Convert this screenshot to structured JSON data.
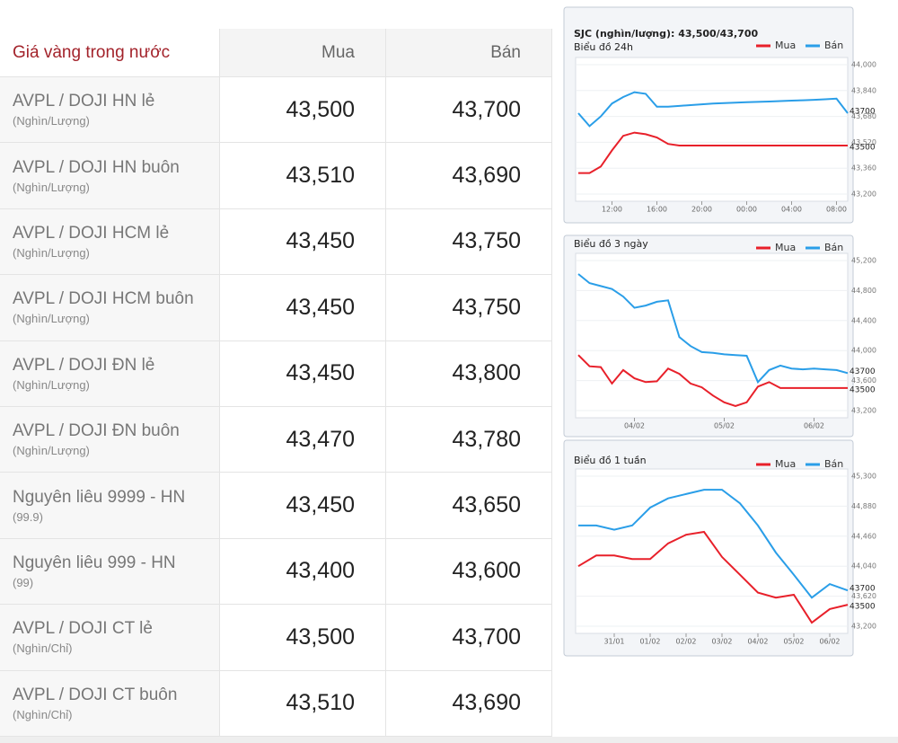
{
  "table": {
    "header": [
      "Giá vàng trong nước",
      "Mua",
      "Bán"
    ],
    "rows": [
      [
        "AVPL / DOJI HN lẻ",
        "(Nghìn/Lượng)",
        "43,500",
        "43,700"
      ],
      [
        "AVPL / DOJI HN buôn",
        "(Nghìn/Lượng)",
        "43,510",
        "43,690"
      ],
      [
        "AVPL / DOJI HCM lẻ",
        "(Nghìn/Lượng)",
        "43,450",
        "43,750"
      ],
      [
        "AVPL / DOJI HCM buôn",
        "(Nghìn/Lượng)",
        "43,450",
        "43,750"
      ],
      [
        "AVPL / DOJI ĐN lẻ",
        "(Nghìn/Lượng)",
        "43,450",
        "43,800"
      ],
      [
        "AVPL / DOJI ĐN buôn",
        "(Nghìn/Lượng)",
        "43,470",
        "43,780"
      ],
      [
        "Nguyên liêu 9999 - HN",
        "(99.9)",
        "43,450",
        "43,650"
      ],
      [
        "Nguyên liêu 999 - HN",
        "(99)",
        "43,400",
        "43,600"
      ],
      [
        "AVPL / DOJI CT lẻ",
        "(Nghìn/Chỉ)",
        "43,500",
        "43,700"
      ],
      [
        "AVPL / DOJI CT buôn",
        "(Nghìn/Chỉ)",
        "43,510",
        "43,690"
      ]
    ]
  },
  "chart_data": [
    {
      "type": "line",
      "title": "SJC (nghìn/lượng): 43,500/43,700",
      "subtitle": "Biểu đồ 24h",
      "categories": [
        null,
        null,
        null,
        "12:00",
        null,
        null,
        null,
        "16:00",
        null,
        null,
        null,
        "20:00",
        null,
        null,
        null,
        "00:00",
        null,
        null,
        null,
        "04:00",
        null,
        null,
        null,
        "08:00",
        null
      ],
      "series": [
        {
          "name": "Bán",
          "color": "#2a9ee8",
          "values": [
            43700,
            43620,
            43680,
            43760,
            43800,
            43830,
            43820,
            43740,
            43740,
            43745,
            43750,
            43755,
            43760,
            43762,
            43765,
            43768,
            43770,
            43772,
            43775,
            43778,
            43780,
            43783,
            43786,
            43790,
            43700
          ]
        },
        {
          "name": "Mua",
          "color": "#e8202a",
          "values": [
            43330,
            43330,
            43370,
            43470,
            43560,
            43580,
            43570,
            43550,
            43510,
            43500,
            43500,
            43500,
            43500,
            43500,
            43500,
            43500,
            43500,
            43500,
            43500,
            43500,
            43500,
            43500,
            43500,
            43500,
            43500
          ]
        }
      ],
      "ylim": [
        43200,
        44000
      ],
      "yticks": [
        {
          "value": 43200,
          "label": "43,200"
        },
        {
          "value": 43360,
          "label": "43,360"
        },
        {
          "value": 43520,
          "label": "43,520"
        },
        {
          "value": 43680,
          "label": "43,680"
        },
        {
          "value": 43840,
          "label": "43,840"
        },
        {
          "value": 44000,
          "label": "44,000"
        }
      ]
    },
    {
      "type": "line",
      "title": "Biểu đồ 3 ngày",
      "categories": [
        null,
        null,
        null,
        null,
        null,
        "04/02",
        null,
        null,
        null,
        null,
        null,
        null,
        null,
        "05/02",
        null,
        null,
        null,
        null,
        null,
        null,
        null,
        "06/02",
        null,
        null,
        null
      ],
      "series": [
        {
          "name": "Bán",
          "color": "#2a9ee8",
          "values": [
            45020,
            44900,
            44860,
            44820,
            44720,
            44570,
            44600,
            44650,
            44670,
            44180,
            44060,
            43980,
            43970,
            43950,
            43940,
            43930,
            43580,
            43740,
            43800,
            43760,
            43750,
            43760,
            43750,
            43740,
            43700
          ]
        },
        {
          "name": "Mua",
          "color": "#e8202a",
          "values": [
            43940,
            43790,
            43780,
            43560,
            43740,
            43630,
            43580,
            43590,
            43760,
            43690,
            43560,
            43510,
            43400,
            43310,
            43260,
            43310,
            43520,
            43580,
            43500,
            43500,
            43500,
            43500,
            43500,
            43500,
            43500
          ]
        }
      ],
      "ylim": [
        43200,
        45200
      ],
      "yticks": [
        {
          "value": 43200,
          "label": "43,200"
        },
        {
          "value": 43600,
          "label": "43,600"
        },
        {
          "value": 44000,
          "label": "44,000"
        },
        {
          "value": 44400,
          "label": "44,400"
        },
        {
          "value": 44800,
          "label": "44,800"
        },
        {
          "value": 45200,
          "label": "45,200"
        }
      ]
    },
    {
      "type": "line",
      "title": "Biểu đồ 1 tuần",
      "categories": [
        null,
        null,
        "31/01",
        null,
        "01/02",
        null,
        "02/02",
        null,
        "03/02",
        null,
        "04/02",
        null,
        "05/02",
        null,
        "06/02",
        null
      ],
      "series": [
        {
          "name": "Bán",
          "color": "#2a9ee8",
          "values": [
            44610,
            44610,
            44550,
            44610,
            44860,
            44990,
            45050,
            45110,
            45110,
            44920,
            44610,
            44230,
            43920,
            43600,
            43790,
            43700
          ]
        },
        {
          "name": "Mua",
          "color": "#e8202a",
          "values": [
            44040,
            44190,
            44190,
            44140,
            44140,
            44360,
            44480,
            44520,
            44170,
            43920,
            43670,
            43600,
            43640,
            43250,
            43440,
            43500
          ]
        }
      ],
      "ylim": [
        43200,
        45300
      ],
      "yticks": [
        {
          "value": 43200,
          "label": "43,200"
        },
        {
          "value": 43620,
          "label": "43,620"
        },
        {
          "value": 44040,
          "label": "44,040"
        },
        {
          "value": 44460,
          "label": "44,460"
        },
        {
          "value": 44880,
          "label": "44,880"
        },
        {
          "value": 45300,
          "label": "45,300"
        }
      ]
    }
  ]
}
